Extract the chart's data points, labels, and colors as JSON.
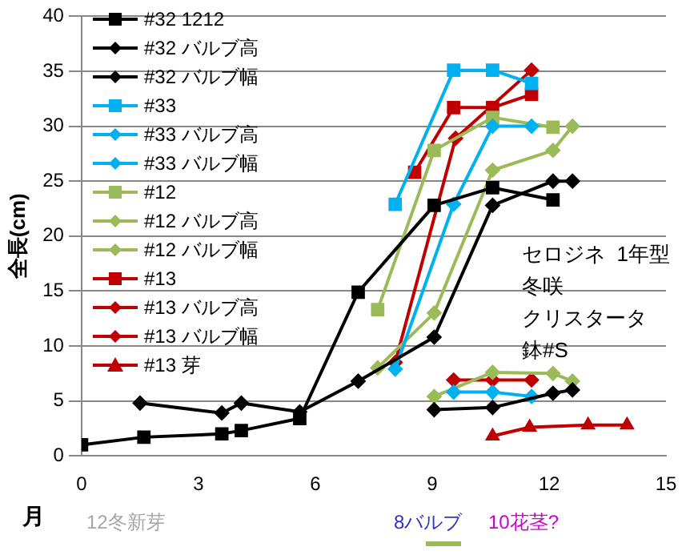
{
  "chart_data": {
    "type": "line",
    "ylabel": "全長(cm)",
    "xlabel": "月",
    "xlim": [
      0,
      15
    ],
    "xticks": [
      0,
      3,
      6,
      9,
      12,
      15
    ],
    "ylim": [
      0,
      40
    ],
    "yticks": [
      0,
      5,
      10,
      15,
      20,
      25,
      30,
      35,
      40
    ],
    "grid": "y",
    "legend": "top left",
    "line_style": "solid",
    "annotations": [
      "セロジネ  1年型",
      "冬咲",
      "クリスタータ",
      "鉢#S",
      "12冬新芽",
      "8バルブ",
      "10花茎?"
    ],
    "series": [
      {
        "name": "#32 1212",
        "color": "#000000",
        "marker": "square",
        "x": [
          0,
          1.6,
          3.6,
          4.1,
          5.6,
          7.1,
          9.05,
          10.55,
          12.1
        ],
        "values": [
          1,
          1.7,
          2,
          2.3,
          3.4,
          14.9,
          22.8,
          24.4,
          23.3
        ]
      },
      {
        "name": "#32 バルブ高",
        "color": "#000000",
        "marker": "diamond",
        "x": [
          9.05,
          10.55,
          12.1,
          12.6
        ],
        "values": [
          4.2,
          4.4,
          5.7,
          6
        ]
      },
      {
        "name": "#32 バルブ幅",
        "color": "#000000",
        "marker": "diamond",
        "x": [
          1.5,
          3.6,
          4.1,
          5.6,
          7.1,
          9.05,
          10.55,
          12.1,
          12.6
        ],
        "values": [
          4.8,
          3.9,
          4.8,
          4,
          6.8,
          10.8,
          22.8,
          25,
          25
        ]
      },
      {
        "name": "#33",
        "color": "#00b0f0",
        "marker": "square",
        "x": [
          8.05,
          9.55,
          10.55,
          11.55
        ],
        "values": [
          22.9,
          35.1,
          35.1,
          33.9
        ]
      },
      {
        "name": "#33 バルブ高",
        "color": "#00b0f0",
        "marker": "diamond",
        "x": [
          9.55,
          10.55,
          11.55
        ],
        "values": [
          5.8,
          5.8,
          5.4
        ]
      },
      {
        "name": "#33 バルブ幅",
        "color": "#00b0f0",
        "marker": "diamond",
        "x": [
          8.05,
          9.55,
          10.55,
          11.55
        ],
        "values": [
          7.9,
          22.9,
          30,
          30
        ]
      },
      {
        "name": "#12",
        "color": "#9bbb59",
        "marker": "square",
        "x": [
          7.6,
          9.05,
          10.55,
          12.1
        ],
        "values": [
          13.3,
          27.8,
          30.8,
          29.9
        ]
      },
      {
        "name": "#12 バルブ高",
        "color": "#9bbb59",
        "marker": "diamond",
        "x": [
          9.05,
          10.55,
          12.1,
          12.6
        ],
        "values": [
          5.4,
          7.6,
          7.5,
          6.8
        ]
      },
      {
        "name": "#12 バルブ幅",
        "color": "#9bbb59",
        "marker": "diamond",
        "x": [
          7.6,
          9.05,
          10.55,
          12.1,
          12.6
        ],
        "values": [
          8,
          13,
          26,
          27.8,
          30
        ]
      },
      {
        "name": "#13",
        "color": "#c00000",
        "marker": "square",
        "x": [
          8.55,
          9.55,
          10.55,
          11.55
        ],
        "values": [
          25.8,
          31.7,
          31.7,
          32.9
        ]
      },
      {
        "name": "#13 バルブ高",
        "color": "#c00000",
        "marker": "diamond",
        "x": [
          9.55,
          10.55,
          11.55
        ],
        "values": [
          6.9,
          6.9,
          6.9
        ]
      },
      {
        "name": "#13 バルブ幅",
        "color": "#c00000",
        "marker": "diamond",
        "x": [
          8.05,
          9.6,
          11.55
        ],
        "values": [
          8.5,
          28.9,
          35.1
        ]
      },
      {
        "name": "#13 芽",
        "color": "#c00000",
        "marker": "triangle",
        "x": [
          10.55,
          11.5,
          13,
          14
        ],
        "values": [
          1.8,
          2.6,
          2.8,
          2.8
        ]
      }
    ]
  }
}
